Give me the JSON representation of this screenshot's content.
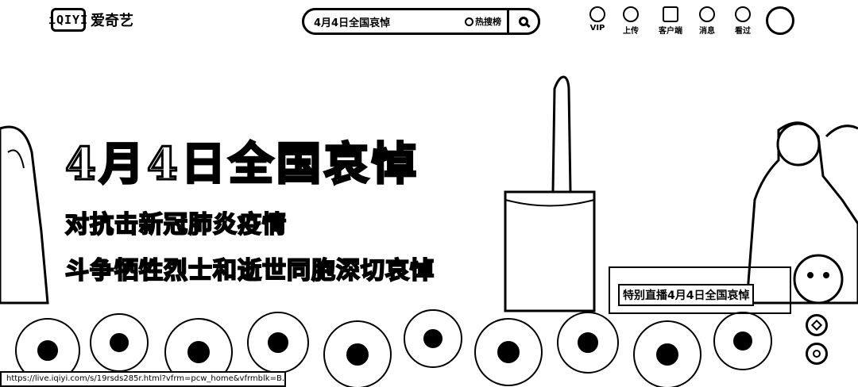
{
  "header": {
    "logo_badge": "iQIYI",
    "logo_text": "爱奇艺",
    "search": {
      "value": "4月4日全国哀悼",
      "hot_label": "热搜榜"
    },
    "nav": [
      {
        "label": "VIP",
        "icon": "crown-icon"
      },
      {
        "label": "上传",
        "icon": "upload-icon"
      },
      {
        "label": "客户端",
        "icon": "client-icon"
      },
      {
        "label": "消息",
        "icon": "bell-icon"
      },
      {
        "label": "看过",
        "icon": "history-icon"
      }
    ]
  },
  "hero": {
    "headline": "4月4日全国哀悼",
    "subline_1": "对抗击新冠肺炎疫情",
    "subline_2": "斗争牺牲烈士和逝世同胞深切哀悼",
    "live_label": "特别直播4月4日全国哀悼"
  },
  "status_bar": {
    "url": "https://live.iqiyi.com/s/19rsds285r.html?vfrm=pcw_home&vfrmblk=B..."
  }
}
